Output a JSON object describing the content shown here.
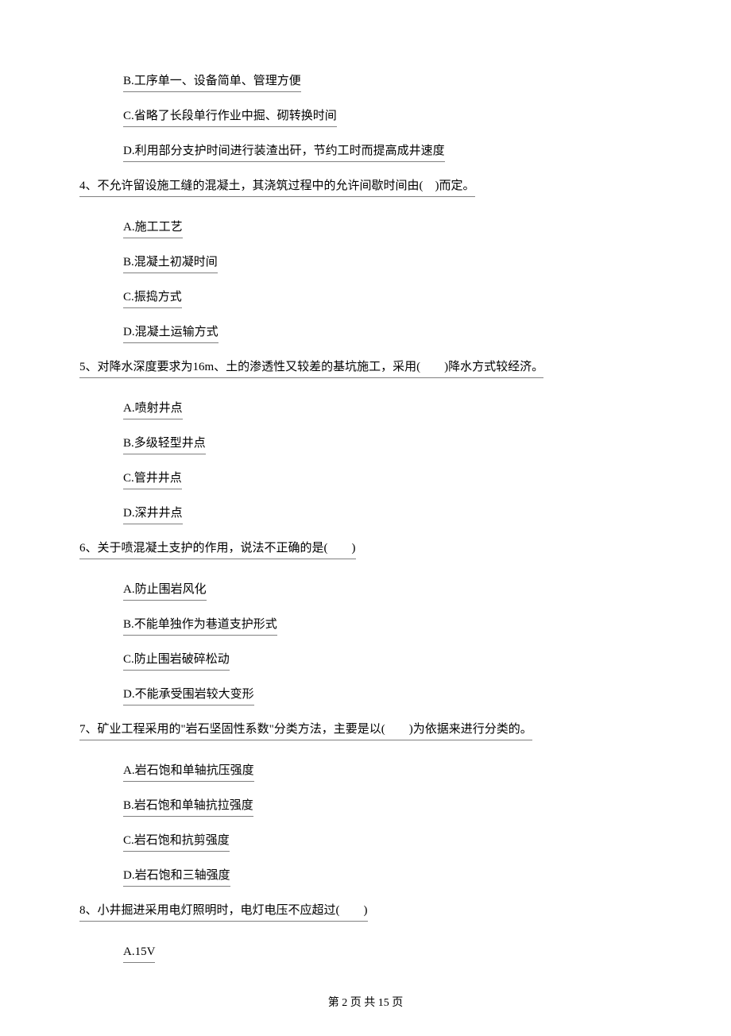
{
  "options_top": [
    "B.工序单一、设备简单、管理方便",
    "C.省略了长段单行作业中掘、砌转换时间",
    "D.利用部分支护时间进行装渣出矸，节约工时而提高成井速度"
  ],
  "questions": [
    {
      "text": "4、不允许留设施工缝的混凝土，其浇筑过程中的允许间歇时间由(　)而定。",
      "options": [
        "A.施工工艺",
        "B.混凝土初凝时间",
        "C.振捣方式",
        "D.混凝土运输方式"
      ]
    },
    {
      "text": "5、对降水深度要求为16m、土的渗透性又较差的基坑施工，采用(　　)降水方式较经济。",
      "options": [
        "A.喷射井点",
        "B.多级轻型井点",
        "C.管井井点",
        "D.深井井点"
      ]
    },
    {
      "text": "6、关于喷混凝土支护的作用，说法不正确的是(　　)",
      "options": [
        "A.防止围岩风化",
        "B.不能单独作为巷道支护形式",
        "C.防止围岩破碎松动",
        "D.不能承受围岩较大变形"
      ]
    },
    {
      "text": "7、矿业工程采用的\"岩石坚固性系数\"分类方法，主要是以(　　)为依据来进行分类的。",
      "options": [
        "A.岩石饱和单轴抗压强度",
        "B.岩石饱和单轴抗拉强度",
        "C.岩石饱和抗剪强度",
        "D.岩石饱和三轴强度"
      ]
    },
    {
      "text": "8、小井掘进采用电灯照明时，电灯电压不应超过(　　)",
      "options": [
        "A.15V"
      ]
    }
  ],
  "footer": "第 2 页 共 15 页"
}
